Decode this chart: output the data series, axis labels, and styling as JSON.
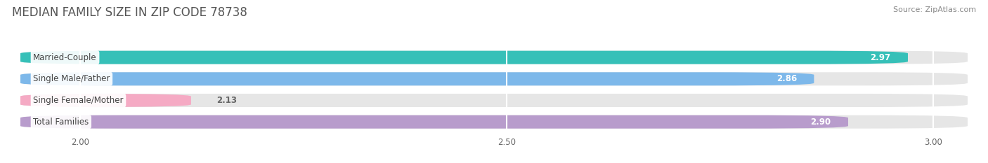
{
  "title": "MEDIAN FAMILY SIZE IN ZIP CODE 78738",
  "source": "Source: ZipAtlas.com",
  "categories": [
    "Married-Couple",
    "Single Male/Father",
    "Single Female/Mother",
    "Total Families"
  ],
  "values": [
    2.97,
    2.86,
    2.13,
    2.9
  ],
  "bar_colors": [
    "#36c0b8",
    "#7db8ea",
    "#f5aac4",
    "#b89ccc"
  ],
  "xlim_min": 1.92,
  "xlim_max": 3.05,
  "xticks": [
    2.0,
    2.5,
    3.0
  ],
  "xtick_labels": [
    "2.00",
    "2.50",
    "3.00"
  ],
  "bar_height": 0.62,
  "value_fontsize": 8.5,
  "label_fontsize": 8.5,
  "title_fontsize": 12,
  "source_fontsize": 8,
  "background_color": "#ffffff",
  "bar_bg_color": "#e6e6e6",
  "grid_color": "#ffffff",
  "title_color": "#555555",
  "label_text_color": "#444444",
  "value_text_color_inside": "#ffffff",
  "value_text_color_outside": "#666666"
}
